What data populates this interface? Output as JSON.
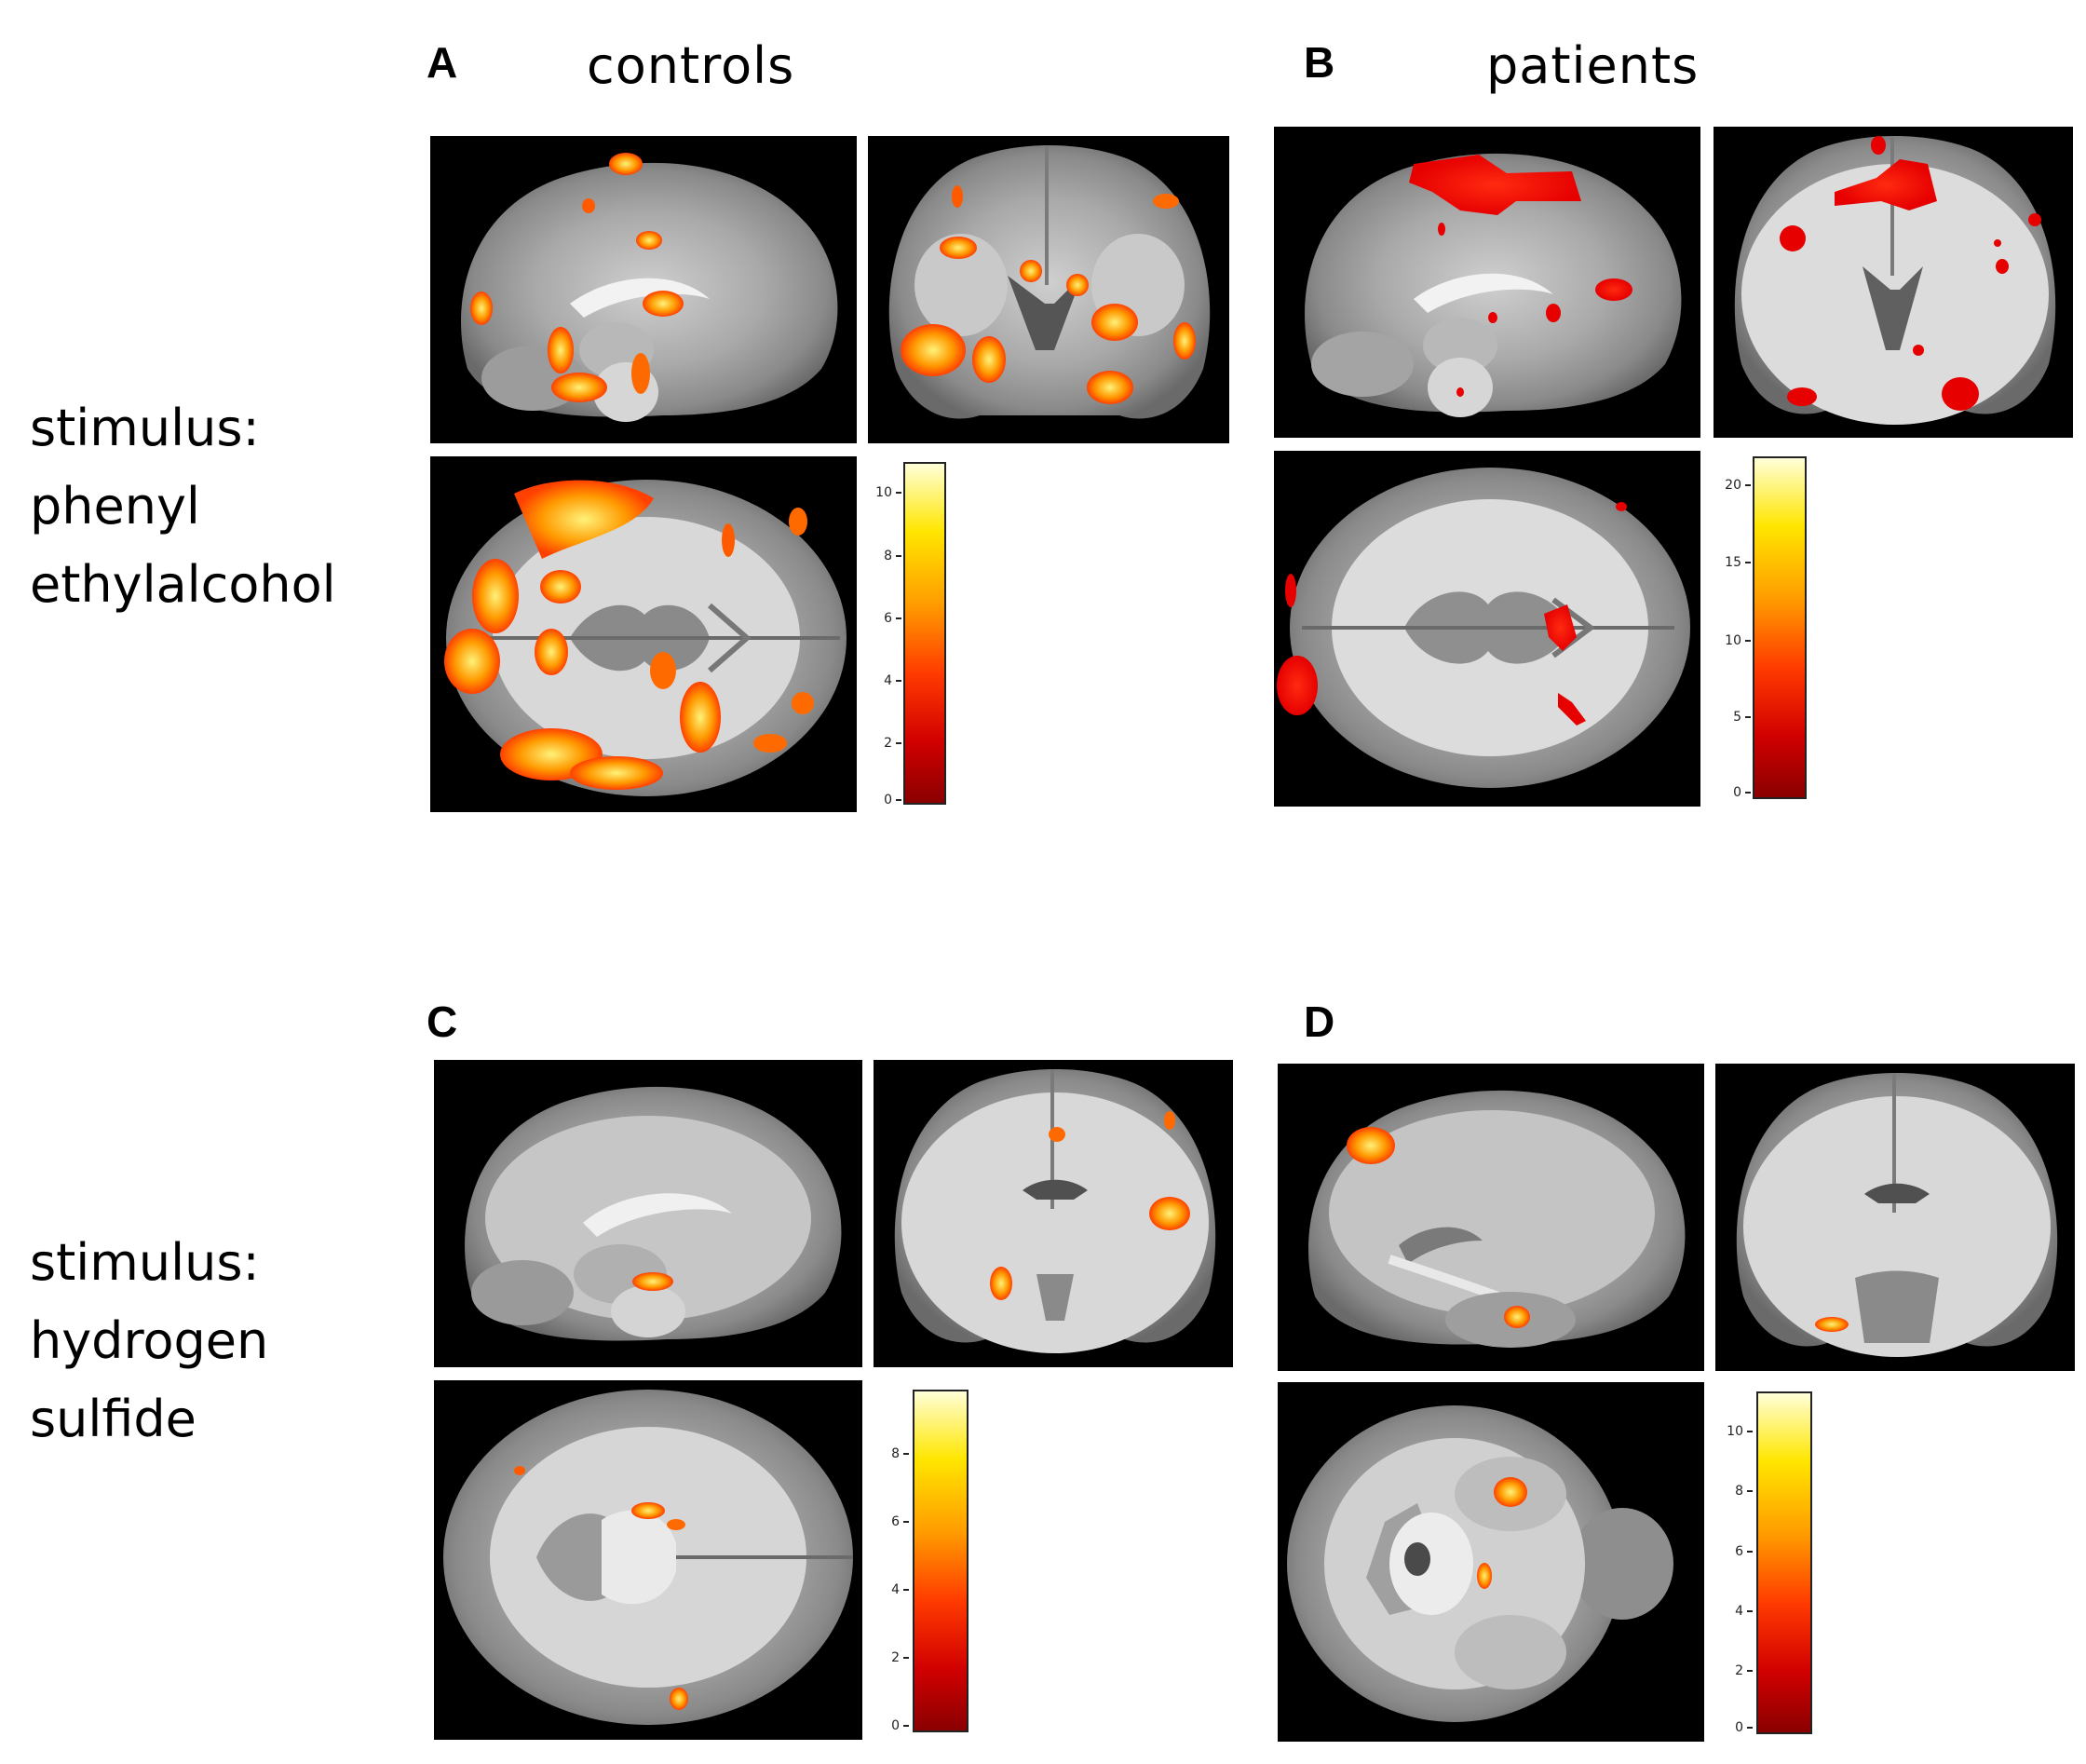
{
  "panels": {
    "A": {
      "letter": "A",
      "title": "controls"
    },
    "B": {
      "letter": "B",
      "title": "patients"
    },
    "C": {
      "letter": "C"
    },
    "D": {
      "letter": "D"
    }
  },
  "stimuli": [
    {
      "line1": "stimulus:",
      "line2": "phenyl",
      "line3": "ethylalcohol"
    },
    {
      "line1": "stimulus:",
      "line2": "hydrogen",
      "line3": "sulfide"
    }
  ],
  "colorbars": {
    "A": {
      "ticks": [
        "10",
        "8",
        "6",
        "4",
        "2",
        "0"
      ],
      "max": 11
    },
    "B": {
      "ticks": [
        "20",
        "15",
        "10",
        "5",
        "0"
      ],
      "max": 21
    },
    "C": {
      "ticks": [
        "8",
        "6",
        "4",
        "2",
        "0"
      ],
      "max": 9
    },
    "D": {
      "ticks": [
        "10",
        "8",
        "6",
        "4",
        "2",
        "0"
      ],
      "max": 11
    }
  },
  "colors": {
    "background": "#ffffff",
    "slice_bg": "#000000",
    "low": "#8a0000",
    "mid": "#ff9a00",
    "high": "#ffffd8"
  },
  "slice_views": [
    "sagittal",
    "coronal",
    "axial"
  ]
}
